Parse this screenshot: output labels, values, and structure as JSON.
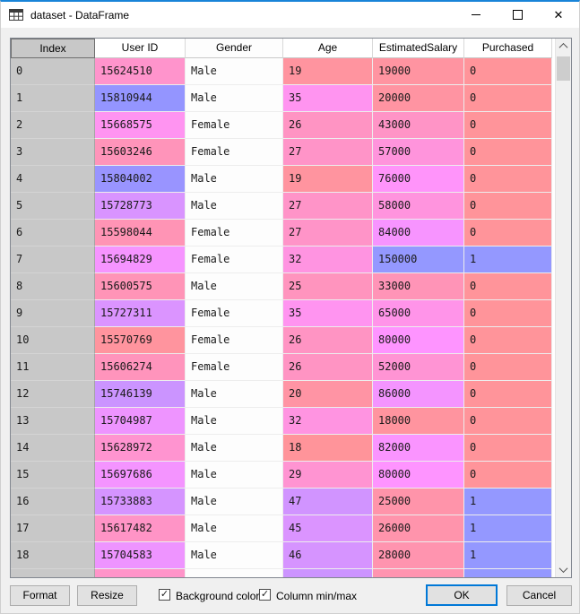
{
  "window": {
    "title": "dataset - DataFrame",
    "app_icon": "table-grid-icon",
    "controls": [
      "minimize",
      "maximize",
      "close"
    ]
  },
  "colors": {
    "accent": "#0078d7",
    "index_bg": "#c8c8c8",
    "gender_bg": "#fdfdfd",
    "value_min": "#ff949a",
    "value_max": "#9498ff"
  },
  "table": {
    "columns": [
      "Index",
      "User ID",
      "Gender",
      "Age",
      "EstimatedSalary",
      "Purchased"
    ],
    "rows": [
      {
        "index": "0",
        "user_id": "15624510",
        "gender": "Male",
        "age": "19",
        "salary": "19000",
        "purchased": "0",
        "colors": {
          "user_id": "#ff94cc",
          "age": "#ff949f",
          "salary": "#ff94a1",
          "purchased": "#ff949a"
        }
      },
      {
        "index": "1",
        "user_id": "15810944",
        "gender": "Male",
        "age": "35",
        "salary": "20000",
        "purchased": "0",
        "colors": {
          "user_id": "#9495ff",
          "age": "#ff94f0",
          "salary": "#ff94a2",
          "purchased": "#ff949a"
        }
      },
      {
        "index": "2",
        "user_id": "15668575",
        "gender": "Female",
        "age": "26",
        "salary": "43000",
        "purchased": "0",
        "colors": {
          "user_id": "#ff94f1",
          "age": "#ff94c3",
          "salary": "#ff94c6",
          "purchased": "#ff949a"
        }
      },
      {
        "index": "3",
        "user_id": "15603246",
        "gender": "Female",
        "age": "27",
        "salary": "57000",
        "purchased": "0",
        "colors": {
          "user_id": "#ff94ba",
          "age": "#ff94c8",
          "salary": "#ff94dc",
          "purchased": "#ff949a"
        }
      },
      {
        "index": "4",
        "user_id": "15804002",
        "gender": "Male",
        "age": "19",
        "salary": "76000",
        "purchased": "0",
        "colors": {
          "user_id": "#9994ff",
          "age": "#ff949f",
          "salary": "#ff94fa",
          "purchased": "#ff949a"
        }
      },
      {
        "index": "5",
        "user_id": "15728773",
        "gender": "Male",
        "age": "27",
        "salary": "58000",
        "purchased": "0",
        "colors": {
          "user_id": "#d994ff",
          "age": "#ff94c8",
          "salary": "#ff94de",
          "purchased": "#ff949a"
        }
      },
      {
        "index": "6",
        "user_id": "15598044",
        "gender": "Female",
        "age": "27",
        "salary": "84000",
        "purchased": "0",
        "colors": {
          "user_id": "#ff94b5",
          "age": "#ff94c8",
          "salary": "#f794ff",
          "purchased": "#ff949a"
        }
      },
      {
        "index": "7",
        "user_id": "15694829",
        "gender": "Female",
        "age": "32",
        "salary": "150000",
        "purchased": "1",
        "colors": {
          "user_id": "#f694ff",
          "age": "#ff94e1",
          "salary": "#9498ff",
          "purchased": "#9498ff"
        }
      },
      {
        "index": "8",
        "user_id": "15600575",
        "gender": "Male",
        "age": "25",
        "salary": "33000",
        "purchased": "0",
        "colors": {
          "user_id": "#ff94b7",
          "age": "#ff94be",
          "salary": "#ff94b7",
          "purchased": "#ff949a"
        }
      },
      {
        "index": "9",
        "user_id": "15727311",
        "gender": "Female",
        "age": "35",
        "salary": "65000",
        "purchased": "0",
        "colors": {
          "user_id": "#db94ff",
          "age": "#ff94f0",
          "salary": "#ff94e9",
          "purchased": "#ff949a"
        }
      },
      {
        "index": "10",
        "user_id": "15570769",
        "gender": "Female",
        "age": "26",
        "salary": "80000",
        "purchased": "0",
        "colors": {
          "user_id": "#ff949e",
          "age": "#ff94c3",
          "salary": "#fe94ff",
          "purchased": "#ff949a"
        }
      },
      {
        "index": "11",
        "user_id": "15606274",
        "gender": "Female",
        "age": "26",
        "salary": "52000",
        "purchased": "0",
        "colors": {
          "user_id": "#ff94bc",
          "age": "#ff94c3",
          "salary": "#ff94d4",
          "purchased": "#ff949a"
        }
      },
      {
        "index": "12",
        "user_id": "15746139",
        "gender": "Male",
        "age": "20",
        "salary": "86000",
        "purchased": "0",
        "colors": {
          "user_id": "#cb94ff",
          "age": "#ff94a4",
          "salary": "#f494ff",
          "purchased": "#ff949a"
        }
      },
      {
        "index": "13",
        "user_id": "15704987",
        "gender": "Male",
        "age": "32",
        "salary": "18000",
        "purchased": "0",
        "colors": {
          "user_id": "#ee94ff",
          "age": "#ff94e1",
          "salary": "#ff949f",
          "purchased": "#ff949a"
        }
      },
      {
        "index": "14",
        "user_id": "15628972",
        "gender": "Male",
        "age": "18",
        "salary": "82000",
        "purchased": "0",
        "colors": {
          "user_id": "#ff94d0",
          "age": "#ff949a",
          "salary": "#fa94ff",
          "purchased": "#ff949a"
        }
      },
      {
        "index": "15",
        "user_id": "15697686",
        "gender": "Male",
        "age": "29",
        "salary": "80000",
        "purchased": "0",
        "colors": {
          "user_id": "#f494ff",
          "age": "#ff94d2",
          "salary": "#fe94ff",
          "purchased": "#ff949a"
        }
      },
      {
        "index": "16",
        "user_id": "15733883",
        "gender": "Male",
        "age": "47",
        "salary": "25000",
        "purchased": "1",
        "colors": {
          "user_id": "#d594ff",
          "age": "#d194ff",
          "salary": "#ff94aa",
          "purchased": "#9498ff"
        }
      },
      {
        "index": "17",
        "user_id": "15617482",
        "gender": "Male",
        "age": "45",
        "salary": "26000",
        "purchased": "1",
        "colors": {
          "user_id": "#ff94c6",
          "age": "#db94ff",
          "salary": "#ff94ac",
          "purchased": "#9498ff"
        }
      },
      {
        "index": "18",
        "user_id": "15704583",
        "gender": "Male",
        "age": "46",
        "salary": "28000",
        "purchased": "1",
        "colors": {
          "user_id": "#ee94ff",
          "age": "#d694ff",
          "salary": "#ff94af",
          "purchased": "#9498ff"
        }
      }
    ],
    "partial_row_colors": {
      "index": "#c8c8c8",
      "user_id": "#ff94c9",
      "gender": "#fdfdfd",
      "age": "#cc94ff",
      "salary": "#ff94b0",
      "purchased": "#9498ff"
    }
  },
  "footer": {
    "format": "Format",
    "resize": "Resize",
    "checkboxes": [
      {
        "label": "Background color",
        "checked": true
      },
      {
        "label": "Column min/max",
        "checked": true
      }
    ],
    "check_glyph": "✓",
    "ok": "OK",
    "cancel": "Cancel"
  }
}
